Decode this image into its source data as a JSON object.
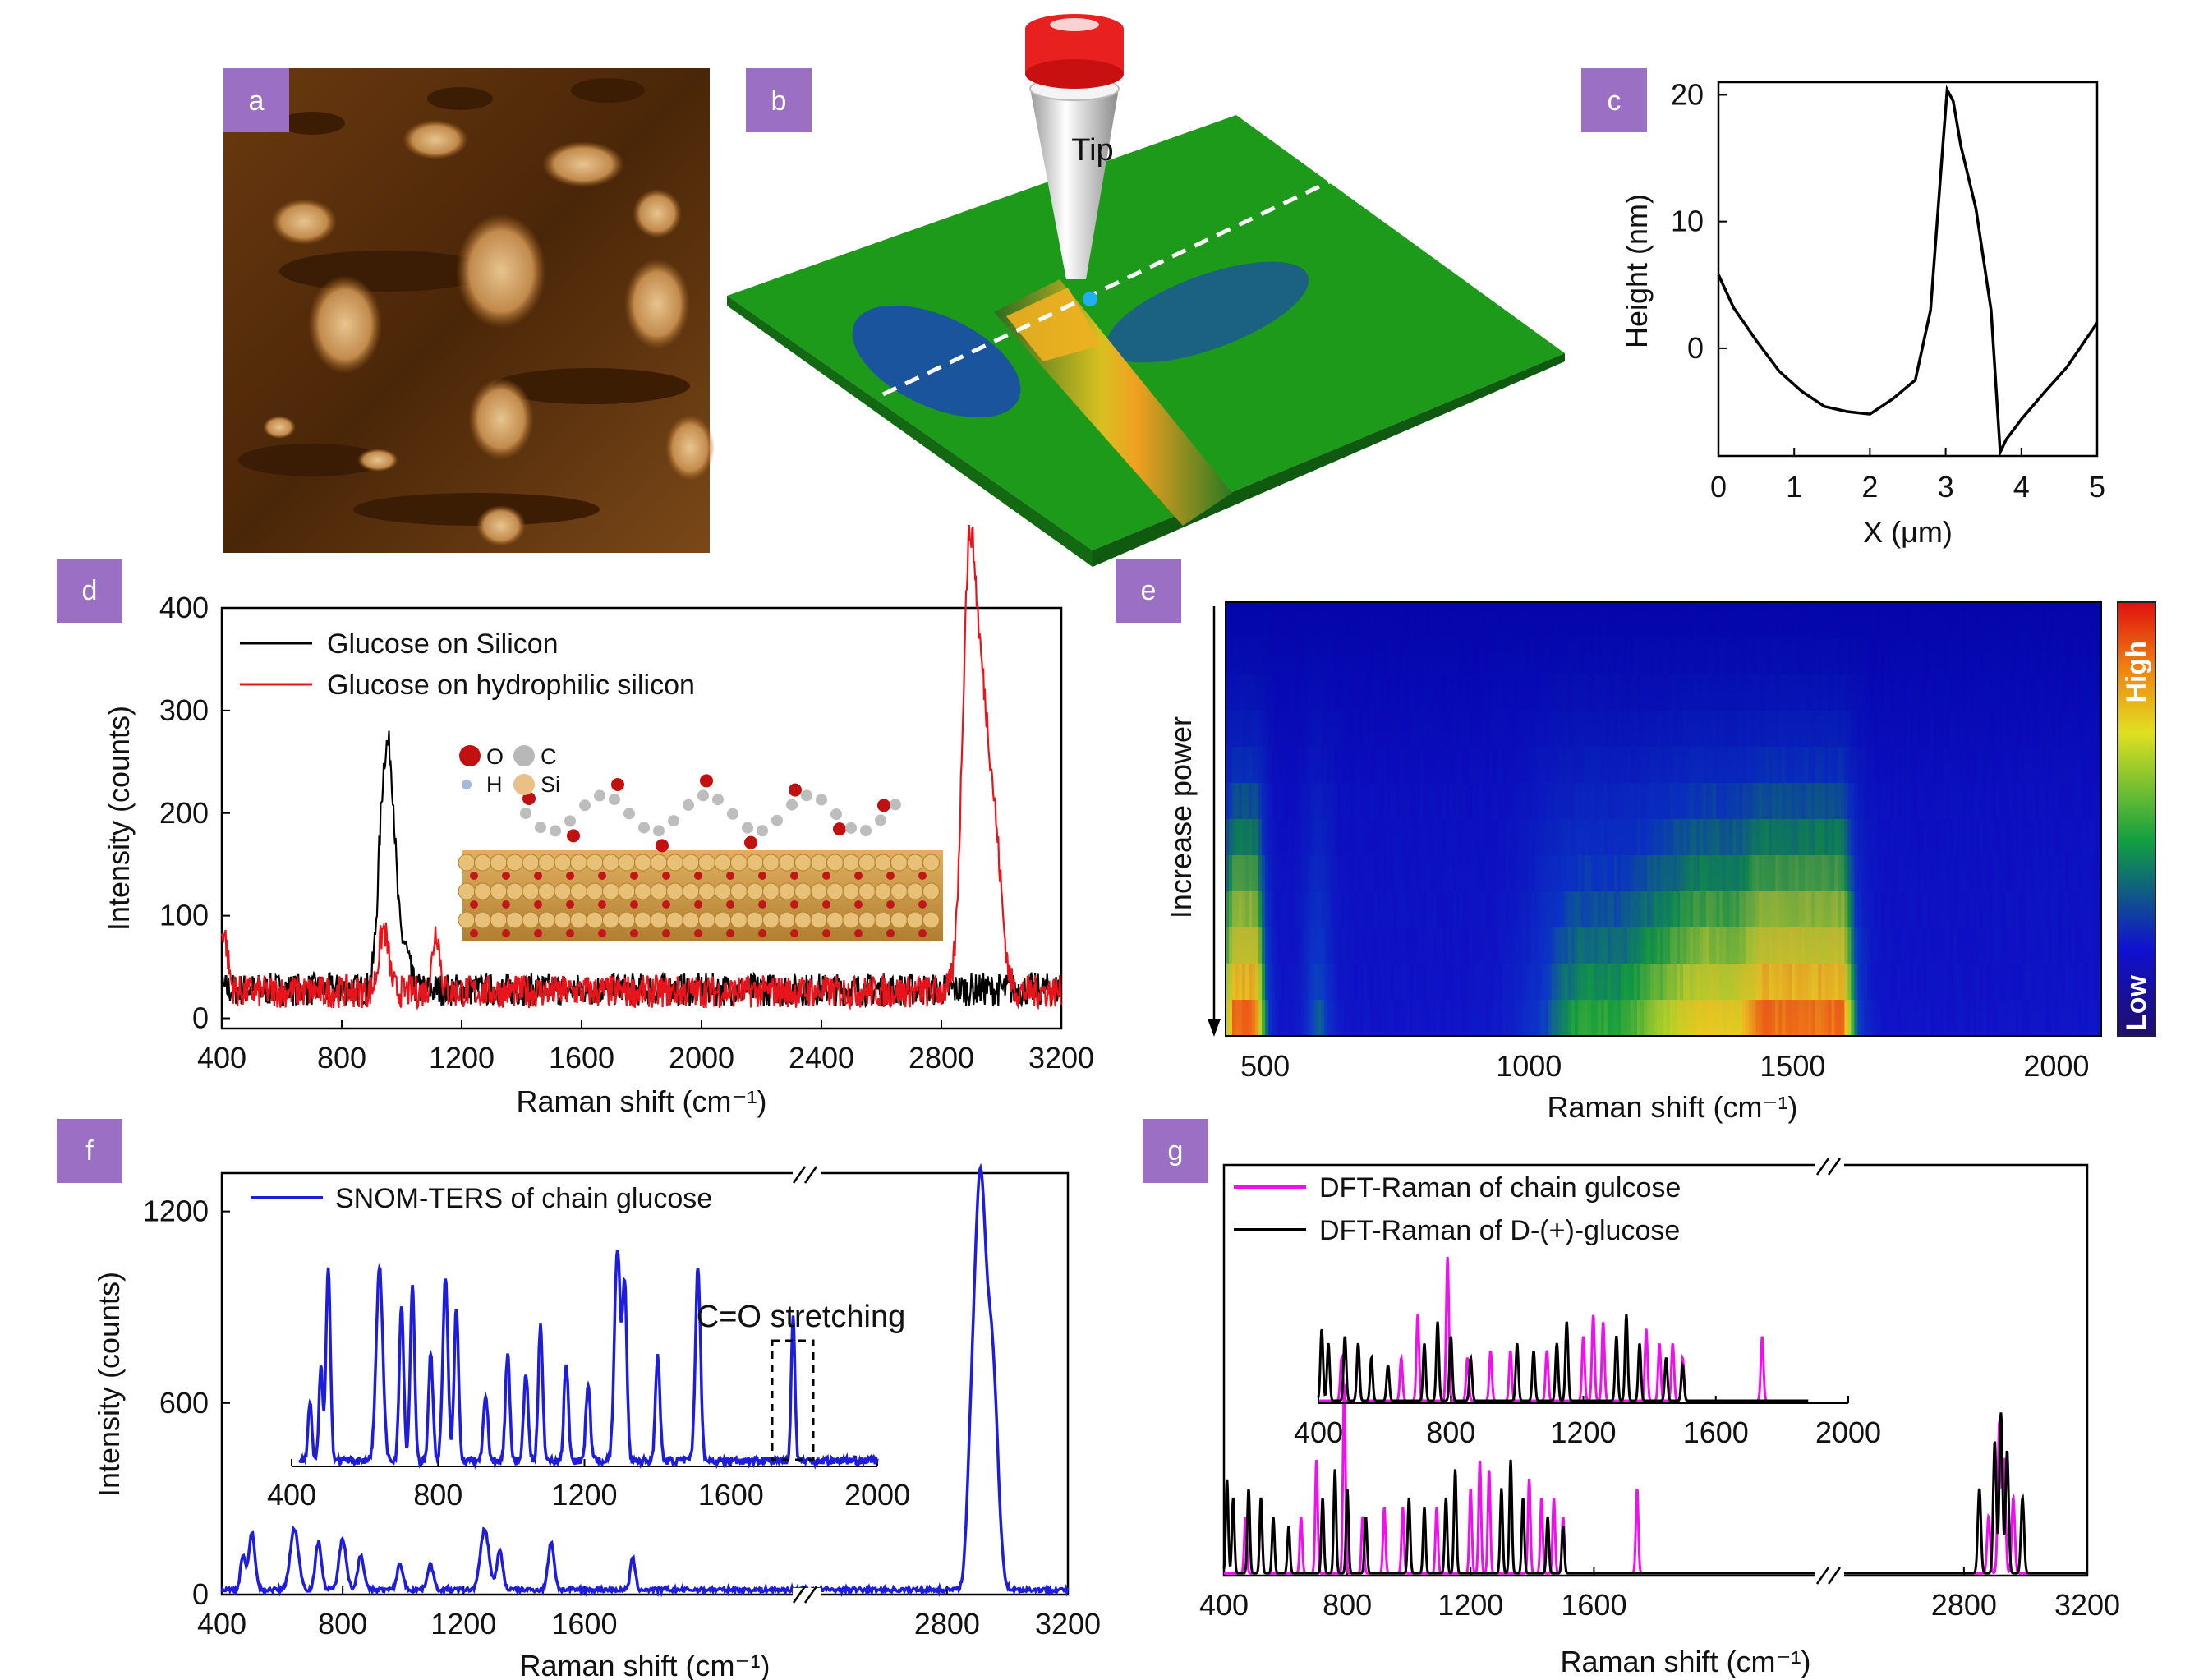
{
  "panels": {
    "a": {
      "label": "a"
    },
    "b": {
      "label": "b",
      "tip_label": "Tip"
    },
    "c": {
      "label": "c"
    },
    "d": {
      "label": "d",
      "atom_legend": {
        "O": "O",
        "C": "C",
        "H": "H",
        "Si": "Si"
      }
    },
    "e": {
      "label": "e",
      "colorbar_high": "High",
      "colorbar_low": "Low"
    },
    "f": {
      "label": "f",
      "annotation": "C=O stretching"
    },
    "g": {
      "label": "g"
    }
  },
  "colors": {
    "panel_label_bg": "#9b6fc4",
    "black_series": "#000000",
    "red_series": "#e8141b",
    "blue_series": "#1d1ddb",
    "magenta_series": "#ee11ee",
    "afm_dark": "#3c1e04",
    "afm_light": "#e8c088",
    "surface_green": "#1d9a1a"
  },
  "chart_data": [
    {
      "id": "c",
      "type": "line",
      "xlabel": "X (μm)",
      "ylabel": "Height (nm)",
      "xlim": [
        0,
        5
      ],
      "ylim": [
        -8.5,
        21
      ],
      "xticks": [
        0,
        1,
        2,
        3,
        4,
        5
      ],
      "yticks": [
        0,
        10,
        20
      ],
      "series": [
        {
          "x": [
            0,
            0.2,
            0.5,
            0.8,
            1.1,
            1.4,
            1.7,
            2.0,
            2.3,
            2.6,
            2.8,
            2.95,
            3.02,
            3.1,
            3.2,
            3.4,
            3.6,
            3.72,
            3.8,
            4.0,
            4.3,
            4.6,
            5.0
          ],
          "y": [
            5.8,
            3.2,
            0.6,
            -1.8,
            -3.4,
            -4.6,
            -5.0,
            -5.2,
            -4.0,
            -2.5,
            3.0,
            15.0,
            20.4,
            19.5,
            16.0,
            11.0,
            3.0,
            -8.2,
            -7.2,
            -5.6,
            -3.5,
            -1.5,
            2.0
          ]
        }
      ]
    },
    {
      "id": "d",
      "type": "line",
      "xlabel": "Raman shift (cm⁻¹)",
      "ylabel": "Intensity (counts)",
      "xlim": [
        400,
        3200
      ],
      "ylim": [
        -10,
        400
      ],
      "xticks": [
        400,
        800,
        1200,
        1600,
        2000,
        2400,
        2800,
        3200
      ],
      "yticks": [
        0,
        100,
        200,
        300,
        400
      ],
      "series": [
        {
          "name": "Glucose on Silicon",
          "color": "#000000",
          "baseline": 28,
          "peaks": [
            [
              940,
              185,
              18
            ],
            [
              968,
              150,
              16
            ],
            [
              1010,
              40,
              15
            ]
          ]
        },
        {
          "name": "Glucose on hydrophilic silicon",
          "color": "#e8141b",
          "baseline": 26,
          "peaks": [
            [
              405,
              60,
              14
            ],
            [
              940,
              60,
              16
            ],
            [
              1115,
              60,
              12
            ],
            [
              2890,
              345,
              22
            ],
            [
              2935,
              270,
              30
            ],
            [
              2985,
              90,
              22
            ]
          ]
        }
      ]
    },
    {
      "id": "e",
      "type": "heatmap",
      "xlabel": "Raman shift (cm⁻¹)",
      "ylabel": "Increase power",
      "xlim": [
        425,
        2085
      ],
      "xticks": [
        500,
        1000,
        1500,
        2000
      ],
      "bands": [
        [
          445,
          0.95,
          25
        ],
        [
          480,
          0.7,
          18
        ],
        [
          600,
          0.35,
          20
        ],
        [
          1100,
          0.5,
          70
        ],
        [
          1250,
          0.55,
          60
        ],
        [
          1350,
          0.65,
          50
        ],
        [
          1450,
          0.8,
          45
        ],
        [
          1530,
          1.0,
          40
        ],
        [
          1580,
          0.85,
          30
        ]
      ]
    },
    {
      "id": "f",
      "type": "line",
      "xlabel": "Raman shift (cm⁻¹)",
      "ylabel": "Intensity (counts)",
      "xlim": [
        400,
        3200
      ],
      "ylim": [
        0,
        1320
      ],
      "axis_break": [
        1800,
        2700
      ],
      "xticks": [
        400,
        800,
        1200,
        1600,
        2800,
        3200
      ],
      "yticks": [
        0,
        600,
        1200
      ],
      "series": [
        {
          "name": "SNOM-TERS of chain glucose",
          "color": "#1d1ddb",
          "peaks": [
            [
              470,
              110,
              8
            ],
            [
              500,
              180,
              10
            ],
            [
              640,
              190,
              14
            ],
            [
              720,
              150,
              10
            ],
            [
              800,
              160,
              12
            ],
            [
              860,
              110,
              10
            ],
            [
              990,
              80,
              10
            ],
            [
              1090,
              80,
              10
            ],
            [
              1270,
              190,
              14
            ],
            [
              1320,
              120,
              10
            ],
            [
              1490,
              150,
              10
            ],
            [
              1760,
              100,
              8
            ],
            [
              2880,
              350,
              14
            ],
            [
              2910,
              1230,
              18
            ],
            [
              2950,
              700,
              18
            ]
          ]
        }
      ],
      "inset": {
        "xlim": [
          400,
          2000
        ],
        "xticks": [
          400,
          800,
          1200,
          1600,
          2000
        ],
        "peaks": [
          [
            450,
            0.3,
            5
          ],
          [
            480,
            0.5,
            5
          ],
          [
            500,
            1.0,
            6
          ],
          [
            640,
            1.0,
            9
          ],
          [
            700,
            0.8,
            6
          ],
          [
            730,
            0.9,
            6
          ],
          [
            780,
            0.55,
            6
          ],
          [
            820,
            0.95,
            7
          ],
          [
            850,
            0.8,
            6
          ],
          [
            930,
            0.35,
            6
          ],
          [
            990,
            0.55,
            6
          ],
          [
            1040,
            0.45,
            6
          ],
          [
            1080,
            0.7,
            6
          ],
          [
            1150,
            0.5,
            6
          ],
          [
            1210,
            0.4,
            6
          ],
          [
            1290,
            1.1,
            8
          ],
          [
            1310,
            0.9,
            6
          ],
          [
            1400,
            0.55,
            6
          ],
          [
            1510,
            1.0,
            7
          ],
          [
            1770,
            0.75,
            5
          ]
        ]
      }
    },
    {
      "id": "g",
      "type": "line",
      "xlabel": "Raman shift (cm⁻¹)",
      "xlim": [
        400,
        3200
      ],
      "axis_break": [
        1800,
        2700
      ],
      "xticks": [
        400,
        800,
        1200,
        1600,
        2800,
        3200
      ],
      "series": [
        {
          "name": "DFT-Raman of chain gulcose",
          "color": "#ee11ee",
          "peaks": [
            [
              470,
              0.3,
              4
            ],
            [
              520,
              0.4,
              4
            ],
            [
              650,
              0.3,
              4
            ],
            [
              700,
              0.6,
              4
            ],
            [
              790,
              1.0,
              4
            ],
            [
              850,
              0.3,
              4
            ],
            [
              920,
              0.35,
              4
            ],
            [
              980,
              0.35,
              4
            ],
            [
              1090,
              0.35,
              4
            ],
            [
              1200,
              0.45,
              4
            ],
            [
              1230,
              0.6,
              4
            ],
            [
              1260,
              0.55,
              4
            ],
            [
              1390,
              0.5,
              4
            ],
            [
              1430,
              0.4,
              4
            ],
            [
              1470,
              0.4,
              4
            ],
            [
              1500,
              0.3,
              4
            ],
            [
              1740,
              0.45,
              4
            ],
            [
              2880,
              0.3,
              5
            ],
            [
              2915,
              0.8,
              5
            ],
            [
              2930,
              0.6,
              5
            ],
            [
              2960,
              0.4,
              5
            ]
          ]
        },
        {
          "name": "DFT-Raman of D-(+)-glucose",
          "color": "#000000",
          "peaks": [
            [
              410,
              0.5,
              4
            ],
            [
              430,
              0.4,
              4
            ],
            [
              480,
              0.45,
              4
            ],
            [
              520,
              0.4,
              4
            ],
            [
              560,
              0.3,
              4
            ],
            [
              610,
              0.25,
              4
            ],
            [
              720,
              0.4,
              4
            ],
            [
              760,
              0.55,
              4
            ],
            [
              800,
              0.45,
              4
            ],
            [
              860,
              0.3,
              4
            ],
            [
              1000,
              0.4,
              4
            ],
            [
              1050,
              0.35,
              4
            ],
            [
              1120,
              0.4,
              4
            ],
            [
              1150,
              0.55,
              4
            ],
            [
              1300,
              0.45,
              4
            ],
            [
              1330,
              0.6,
              4
            ],
            [
              1370,
              0.4,
              4
            ],
            [
              1450,
              0.3,
              4
            ],
            [
              1500,
              0.25,
              4
            ],
            [
              2850,
              0.45,
              5
            ],
            [
              2900,
              0.7,
              5
            ],
            [
              2920,
              0.85,
              5
            ],
            [
              2940,
              0.65,
              5
            ],
            [
              2990,
              0.4,
              5
            ]
          ]
        }
      ]
    }
  ]
}
